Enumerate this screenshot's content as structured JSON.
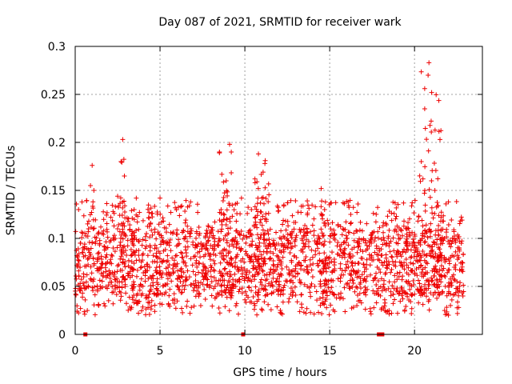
{
  "chart_data": {
    "type": "scatter",
    "title": "Day 087 of 2021, SRMTID for receiver wark",
    "xlabel": "GPS time / hours",
    "ylabel": "SRMTID / TECUs",
    "xlim": [
      0,
      24.0
    ],
    "ylim": [
      0,
      0.3
    ],
    "x_ticks": [
      0,
      5,
      10,
      15,
      20
    ],
    "x_tick_labels": [
      "0",
      "5",
      "10",
      "15",
      "20"
    ],
    "y_ticks": [
      0,
      0.05,
      0.1,
      0.15,
      0.2,
      0.25,
      0.3
    ],
    "y_tick_labels": [
      "0",
      "0.05",
      "0.1",
      "0.15",
      "0.2",
      "0.25",
      "0.3"
    ],
    "grid": true,
    "marker": "plus",
    "color": "#ee0000",
    "series": [
      {
        "name": "SRMTID",
        "segments": [
          {
            "x_start": 0.0,
            "x_end": 22.9,
            "typical_low": 0.04,
            "typical_high": 0.11,
            "peak": 0.14
          },
          {
            "x_start": 2.5,
            "x_end": 3.0,
            "typical_low": 0.06,
            "typical_high": 0.15,
            "peak": 0.203
          },
          {
            "x_start": 8.5,
            "x_end": 9.3,
            "typical_low": 0.06,
            "typical_high": 0.15,
            "peak": 0.198
          },
          {
            "x_start": 10.5,
            "x_end": 11.5,
            "typical_low": 0.06,
            "typical_high": 0.16,
            "peak": 0.188
          },
          {
            "x_start": 14.4,
            "x_end": 14.8,
            "typical_low": 0.05,
            "typical_high": 0.13,
            "peak": 0.152
          },
          {
            "x_start": 20.3,
            "x_end": 21.6,
            "typical_low": 0.05,
            "typical_high": 0.22,
            "peak": 0.283
          }
        ],
        "points": [
          [
            0.05,
            0.041
          ],
          [
            0.1,
            0.072
          ],
          [
            0.2,
            0.13
          ],
          [
            0.3,
            0.095
          ],
          [
            0.4,
            0.138
          ],
          [
            0.5,
            0.06
          ],
          [
            0.6,
            0.082
          ],
          [
            0.8,
            0.118
          ],
          [
            0.9,
            0.155
          ],
          [
            1.0,
            0.176
          ],
          [
            1.1,
            0.15
          ],
          [
            1.3,
            0.078
          ],
          [
            1.5,
            0.048
          ],
          [
            1.7,
            0.032
          ],
          [
            1.9,
            0.061
          ],
          [
            2.1,
            0.098
          ],
          [
            2.3,
            0.126
          ],
          [
            2.5,
            0.144
          ],
          [
            2.7,
            0.18
          ],
          [
            2.8,
            0.203
          ],
          [
            2.9,
            0.165
          ],
          [
            3.1,
            0.098
          ],
          [
            3.3,
            0.082
          ],
          [
            3.6,
            0.142
          ],
          [
            3.9,
            0.07
          ],
          [
            4.2,
            0.105
          ],
          [
            4.5,
            0.058
          ],
          [
            4.8,
            0.09
          ],
          [
            5.0,
            0.142
          ],
          [
            5.2,
            0.118
          ],
          [
            5.5,
            0.032
          ],
          [
            5.8,
            0.072
          ],
          [
            6.2,
            0.055
          ],
          [
            6.5,
            0.102
          ],
          [
            6.8,
            0.138
          ],
          [
            7.1,
            0.062
          ],
          [
            7.4,
            0.03
          ],
          [
            7.8,
            0.088
          ],
          [
            8.2,
            0.066
          ],
          [
            8.6,
            0.13
          ],
          [
            8.9,
            0.16
          ],
          [
            9.1,
            0.198
          ],
          [
            9.2,
            0.19
          ],
          [
            9.5,
            0.094
          ],
          [
            9.8,
            0.142
          ],
          [
            10.0,
            0.036
          ],
          [
            10.3,
            0.08
          ],
          [
            10.6,
            0.158
          ],
          [
            10.8,
            0.188
          ],
          [
            11.0,
            0.142
          ],
          [
            11.2,
            0.181
          ],
          [
            11.4,
            0.126
          ],
          [
            11.7,
            0.098
          ],
          [
            12.0,
            0.052
          ],
          [
            12.4,
            0.118
          ],
          [
            12.8,
            0.04
          ],
          [
            13.2,
            0.075
          ],
          [
            13.6,
            0.022
          ],
          [
            14.0,
            0.06
          ],
          [
            14.3,
            0.097
          ],
          [
            14.5,
            0.152
          ],
          [
            14.7,
            0.13
          ],
          [
            15.0,
            0.08
          ],
          [
            15.4,
            0.038
          ],
          [
            15.8,
            0.062
          ],
          [
            16.2,
            0.048
          ],
          [
            16.6,
            0.03
          ],
          [
            17.0,
            0.056
          ],
          [
            17.4,
            0.024
          ],
          [
            17.8,
            0.07
          ],
          [
            18.2,
            0.056
          ],
          [
            18.6,
            0.097
          ],
          [
            19.0,
            0.022
          ],
          [
            19.4,
            0.068
          ],
          [
            19.8,
            0.088
          ],
          [
            20.0,
            0.042
          ],
          [
            20.2,
            0.118
          ],
          [
            20.4,
            0.18
          ],
          [
            20.6,
            0.235
          ],
          [
            20.8,
            0.27
          ],
          [
            20.85,
            0.283
          ],
          [
            21.0,
            0.16
          ],
          [
            21.2,
            0.15
          ],
          [
            21.5,
            0.203
          ],
          [
            21.7,
            0.118
          ],
          [
            22.0,
            0.138
          ],
          [
            22.3,
            0.062
          ],
          [
            22.6,
            0.028
          ],
          [
            22.8,
            0.075
          ]
        ]
      }
    ],
    "gap_markers_x": [
      0.6,
      9.9,
      17.9,
      18.1
    ]
  }
}
